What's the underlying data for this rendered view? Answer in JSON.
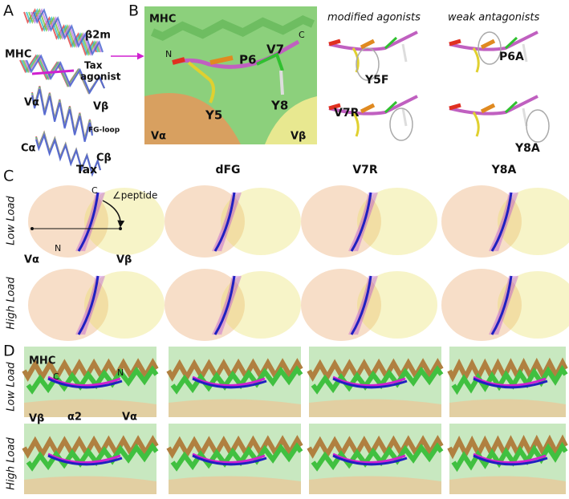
{
  "panel_a": {
    "label": "A",
    "texts": [
      "β2m",
      "MHC",
      "Tax",
      "agonist",
      "Vα",
      "Vβ",
      "FG-loop",
      "Cα",
      "Cβ"
    ]
  },
  "panel_b": {
    "label": "B",
    "main_texts": [
      "MHC",
      "N",
      "C",
      "P6",
      "V7",
      "Y5",
      "Y8",
      "Vα",
      "Vβ"
    ],
    "groups": [
      {
        "title": "modified agonists",
        "variants": [
          "Y5F",
          "V7R"
        ]
      },
      {
        "title": "weak antagonists",
        "variants": [
          "P6A",
          "Y8A"
        ]
      }
    ]
  },
  "panel_c": {
    "label": "C",
    "columns": [
      "Tax",
      "dFG",
      "V7R",
      "Y8A"
    ],
    "rows": [
      "Low Load",
      "High Load"
    ],
    "annotations": [
      "C",
      "∠peptide",
      "N",
      "Vα",
      "Vβ"
    ]
  },
  "panel_d": {
    "label": "D",
    "rows": [
      "Low Load",
      "High Load"
    ],
    "annotations": [
      "MHC",
      "C",
      "N",
      "Vβ",
      "α2",
      "Vα"
    ]
  }
}
